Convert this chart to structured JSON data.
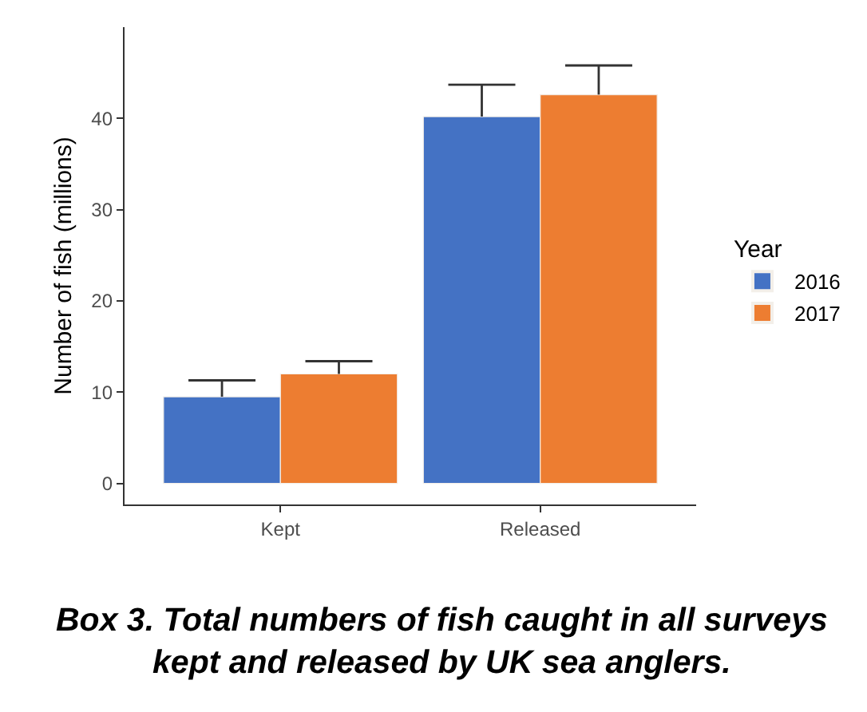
{
  "chart_data": {
    "type": "bar",
    "ylabel": "Number of fish (millions)",
    "legend_title": "Year",
    "categories": [
      "Kept",
      "Released"
    ],
    "series": [
      {
        "name": "2016",
        "color": "#4472c4",
        "values": [
          9.5,
          40.2
        ],
        "errors": [
          [
            9.5,
            11.3
          ],
          [
            40.2,
            43.7
          ]
        ]
      },
      {
        "name": "2017",
        "color": "#ed7d31",
        "values": [
          12,
          42.6
        ],
        "errors": [
          [
            12,
            13.4
          ],
          [
            42.6,
            45.8
          ]
        ]
      }
    ],
    "ylim": [
      -2.3,
      50
    ],
    "yticks": [
      0,
      10,
      20,
      30,
      40
    ],
    "grid": false,
    "legend": "right",
    "annotations": [
      "Box 3. Total numbers of fish caught in all surveys\nkept and released by UK sea anglers."
    ]
  }
}
